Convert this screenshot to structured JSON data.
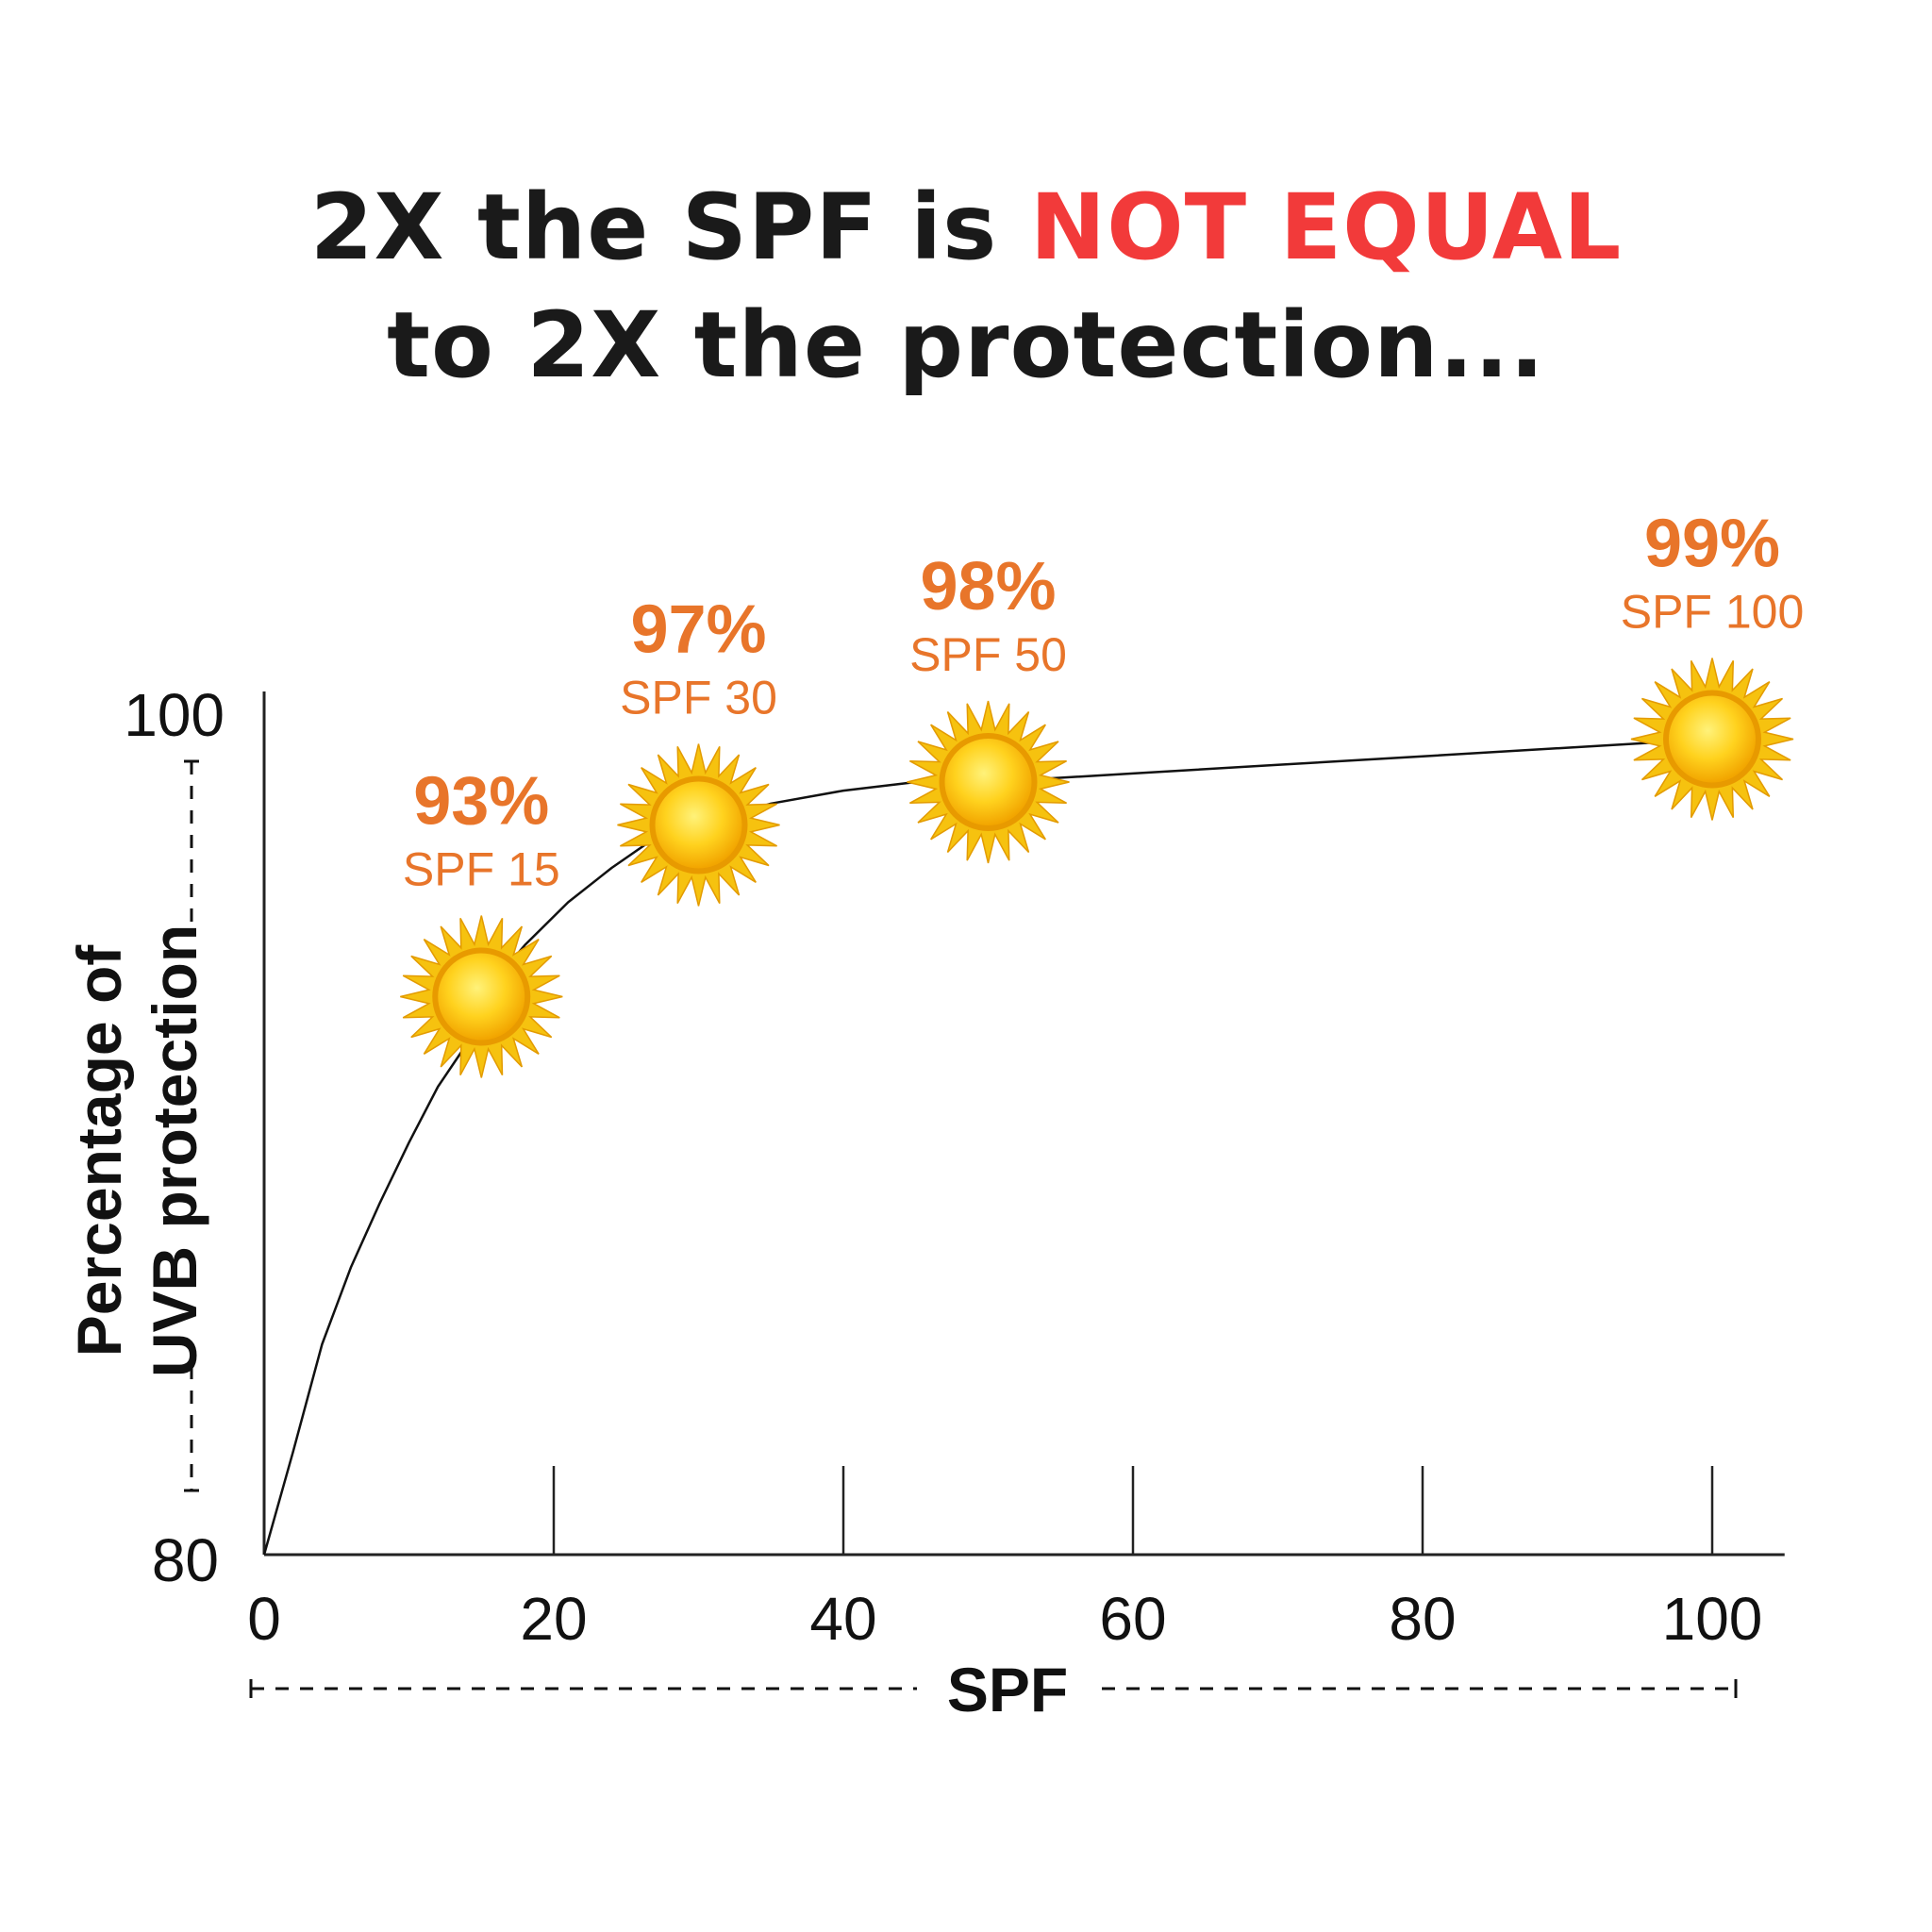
{
  "title": {
    "line1_prefix": "2X the SPF is ",
    "line1_highlight": "NOT EQUAL",
    "line2": "to 2X the protection...",
    "highlight_color": "#f23a3a"
  },
  "chart_data": {
    "type": "line",
    "xlabel": "SPF",
    "ylabel_lines": [
      "Percentage of",
      "UVB protection"
    ],
    "xlim": [
      0,
      105
    ],
    "ylim": [
      80,
      100
    ],
    "x_ticks": [
      0,
      20,
      40,
      60,
      80,
      100
    ],
    "x_tick_labels": [
      "0",
      "20",
      "40",
      "60",
      "80",
      "100"
    ],
    "y_tick_labels": [
      "100",
      "80"
    ],
    "grid": false,
    "line_color": "#111111",
    "label_color": "#e8752a",
    "marker": "sun-icon",
    "series": [
      {
        "x": [
          0,
          2,
          4,
          6,
          8,
          10,
          12,
          14,
          15,
          18,
          21,
          24,
          27,
          30,
          35,
          40,
          45,
          50,
          60,
          70,
          80,
          90,
          100
        ],
        "y": [
          80.0,
          82.4,
          84.9,
          86.7,
          88.2,
          89.6,
          90.9,
          91.9,
          93.0,
          94.2,
          95.2,
          96.0,
          96.7,
          97.0,
          97.5,
          97.8,
          98.0,
          98.0,
          98.2,
          98.4,
          98.6,
          98.8,
          99.0
        ]
      }
    ],
    "annotations": [
      {
        "x": 15,
        "y": 93,
        "pct": "93%",
        "spf": "SPF 15"
      },
      {
        "x": 30,
        "y": 97,
        "pct": "97%",
        "spf": "SPF 30"
      },
      {
        "x": 50,
        "y": 98,
        "pct": "98%",
        "spf": "SPF 50"
      },
      {
        "x": 100,
        "y": 99,
        "pct": "99%",
        "spf": "SPF 100"
      }
    ]
  }
}
